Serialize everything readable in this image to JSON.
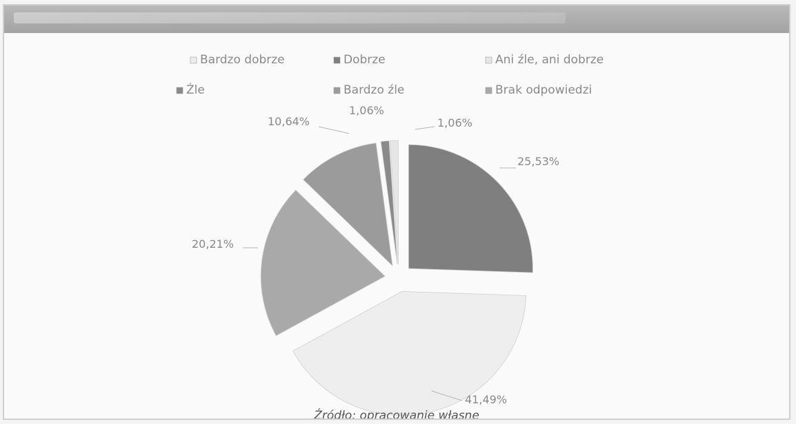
{
  "chart_data": {
    "type": "pie",
    "exploded": true,
    "categories": [
      "Bardzo dobrze",
      "Dobrze",
      "Ani źle, ani dobrze",
      "Źle",
      "Bardzo źle",
      "Brak odpowiedzi"
    ],
    "values": [
      41.49,
      25.53,
      1.06,
      1.06,
      10.64,
      20.21
    ],
    "slices": [
      {
        "category": "Dobrze",
        "value": 25.53,
        "label": "25,53%",
        "color": "#7f7f7f"
      },
      {
        "category": "Bardzo dobrze",
        "value": 41.49,
        "label": "41,49%",
        "color": "#eeeeee"
      },
      {
        "category": "Brak odpowiedzi",
        "value": 20.21,
        "label": "20,21%",
        "color": "#a9a9a9"
      },
      {
        "category": "Bardzo źle",
        "value": 10.64,
        "label": "10,64%",
        "color": "#9b9b9b"
      },
      {
        "category": "Źle",
        "value": 1.06,
        "label": "1,06%",
        "color": "#8a8a8a"
      },
      {
        "category": "Ani źle, ani dobrze",
        "value": 1.06,
        "label": "1,06%",
        "color": "#e6e6e6"
      }
    ],
    "legend": {
      "placement": "top",
      "entries": [
        {
          "label": "Bardzo dobrze",
          "color": "#eeeeee"
        },
        {
          "label": "Dobrze",
          "color": "#7f7f7f"
        },
        {
          "label": "Ani źle, ani dobrze",
          "color": "#e6e6e6"
        },
        {
          "label": "Źle",
          "color": "#8a8a8a"
        },
        {
          "label": "Bardzo źle",
          "color": "#9b9b9b"
        },
        {
          "label": "Brak odpowiedzi",
          "color": "#a9a9a9"
        }
      ]
    }
  },
  "source_text": "Źródło: opracowanie własne"
}
